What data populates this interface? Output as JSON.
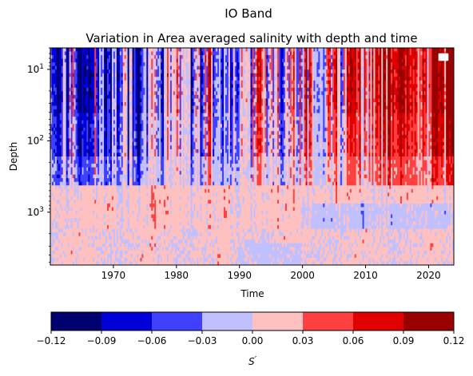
{
  "chart_data": {
    "type": "heatmap",
    "suptitle": "IO Band",
    "title": "Variation in Area averaged salinity with depth and time",
    "xlabel": "Time",
    "ylabel": "Depth",
    "xlim": [
      1960,
      2024
    ],
    "x_ticks": [
      1970,
      1980,
      1990,
      2000,
      2010,
      2020
    ],
    "y_scale": "log",
    "y_inverted": true,
    "ylim": [
      5,
      5500
    ],
    "y_ticks": [
      {
        "value": 10,
        "base": "10",
        "exp": "1"
      },
      {
        "value": 100,
        "base": "10",
        "exp": "2"
      },
      {
        "value": 1000,
        "base": "10",
        "exp": "3"
      }
    ],
    "legend": "top-right (empty)",
    "colorbar": {
      "label_base": "S",
      "label_prime": "′",
      "orientation": "horizontal",
      "ticks": [
        "−0.12",
        "−0.09",
        "−0.06",
        "−0.03",
        "0.00",
        "0.03",
        "0.06",
        "0.09",
        "0.12"
      ],
      "levels": [
        -0.12,
        -0.09,
        -0.06,
        -0.03,
        0.0,
        0.03,
        0.06,
        0.09,
        0.12
      ],
      "colors": [
        "#00006e",
        "#0000d8",
        "#4040ff",
        "#c0c0ff",
        "#ffc0c0",
        "#ff4040",
        "#e00000",
        "#9a0000"
      ]
    }
  }
}
